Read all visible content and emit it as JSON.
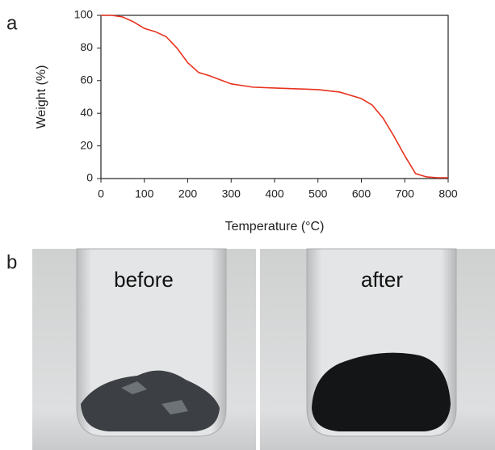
{
  "panel_labels": [
    "a",
    "b"
  ],
  "photo_labels": [
    "before",
    "after"
  ],
  "chart_data": {
    "type": "line",
    "x_label": "Temperature (°C)",
    "y_label": "Weight (%)",
    "x": [
      0,
      25,
      50,
      75,
      100,
      125,
      150,
      175,
      200,
      225,
      250,
      300,
      350,
      400,
      450,
      500,
      550,
      600,
      625,
      650,
      675,
      700,
      725,
      750,
      775,
      800
    ],
    "values": [
      100,
      100,
      99,
      96,
      92,
      90,
      87,
      80,
      71,
      65,
      63,
      58,
      56,
      55.5,
      55,
      54.5,
      53,
      49,
      45,
      37,
      26,
      14,
      3,
      1,
      0.5,
      0.5
    ],
    "color": "#e8321e",
    "xlim": [
      0,
      800
    ],
    "xticks": [
      0,
      100,
      200,
      300,
      400,
      500,
      600,
      700,
      800
    ],
    "ylim": [
      0,
      100
    ],
    "yticks": [
      0,
      20,
      40,
      60,
      80,
      100
    ]
  }
}
